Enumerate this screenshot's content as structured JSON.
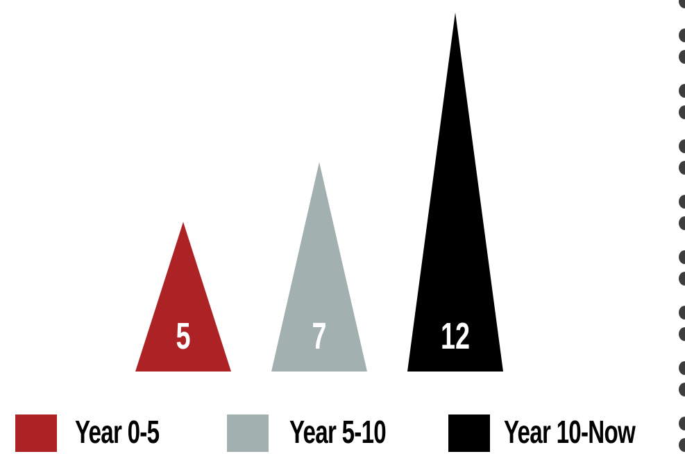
{
  "chart_data": {
    "type": "bar",
    "mark": "triangle",
    "categories": [
      "Year 0-5",
      "Year 5-10",
      "Year 10-Now"
    ],
    "values": [
      5,
      7,
      12
    ],
    "data_labels": [
      "5",
      "7",
      "12"
    ],
    "title": "",
    "xlabel": "",
    "ylabel": "",
    "ylim": [
      0,
      12
    ],
    "grid": false,
    "legend": "bottom",
    "colors": [
      "#ad2224",
      "#a2b1af",
      "#000000"
    ],
    "series": [
      {
        "values": [
          5,
          7,
          12
        ]
      }
    ]
  },
  "legend": {
    "items": [
      {
        "label": "Year 0-5",
        "color": "#ad2224"
      },
      {
        "label": "Year 5-10",
        "color": "#a2b1af"
      },
      {
        "label": "Year 10-Now",
        "color": "#000000"
      }
    ]
  },
  "decoration": {
    "dot_color": "#3d3d3d"
  }
}
